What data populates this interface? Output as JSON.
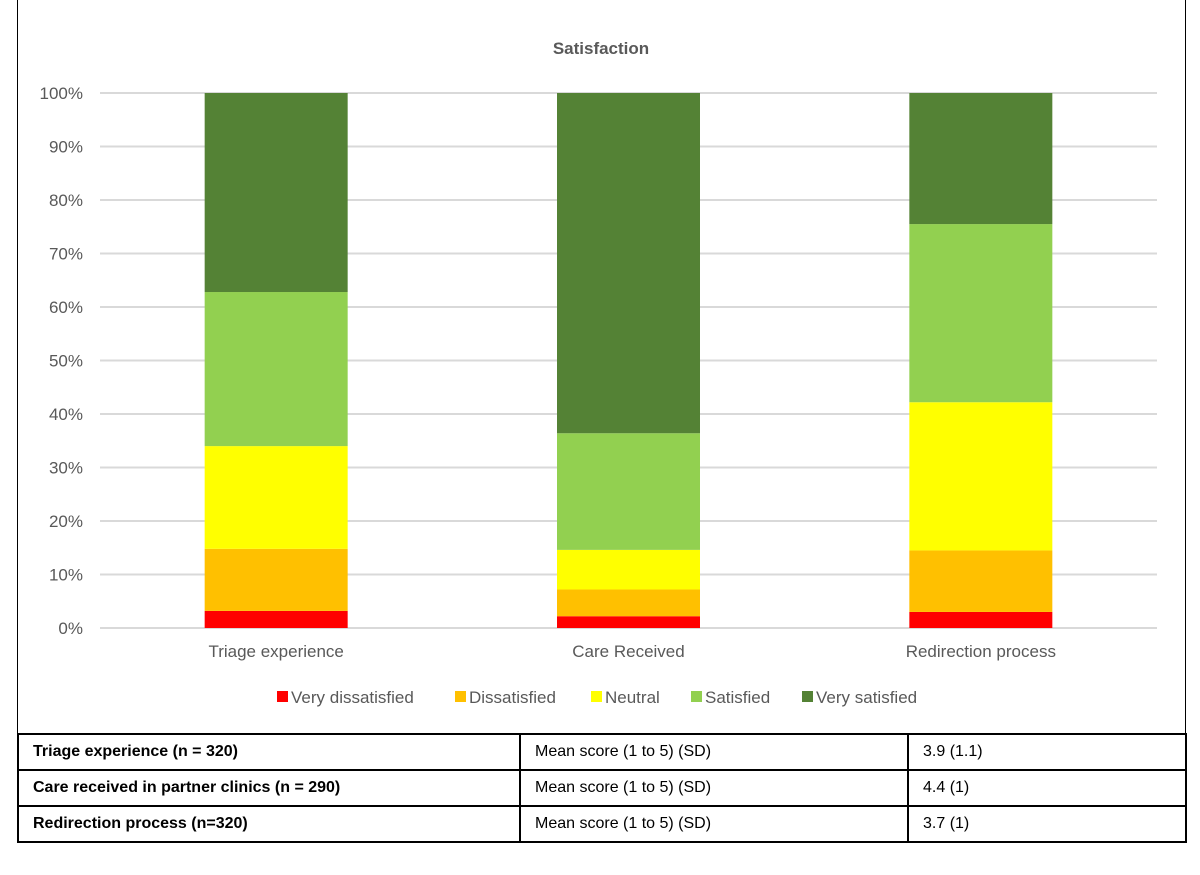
{
  "chart_data": {
    "type": "bar",
    "stacked": true,
    "percent": true,
    "title": "Satisfaction",
    "categories": [
      "Triage experience",
      "Care Received",
      "Redirection process"
    ],
    "series": [
      {
        "name": "Very dissatisfied",
        "color": "#FF0000",
        "values": [
          3.2,
          2.2,
          3.0
        ]
      },
      {
        "name": "Dissatisfied",
        "color": "#FFC000",
        "values": [
          11.6,
          5.0,
          11.5
        ]
      },
      {
        "name": "Neutral",
        "color": "#FFFF00",
        "values": [
          19.2,
          7.4,
          27.7
        ]
      },
      {
        "name": "Satisfied",
        "color": "#92D050",
        "values": [
          28.8,
          21.8,
          33.3
        ]
      },
      {
        "name": "Very satisfied",
        "color": "#548235",
        "values": [
          37.2,
          63.6,
          24.5
        ]
      }
    ],
    "yticks": [
      "0%",
      "10%",
      "20%",
      "30%",
      "40%",
      "50%",
      "60%",
      "70%",
      "80%",
      "90%",
      "100%"
    ],
    "ylim": [
      0,
      100
    ],
    "grid": true,
    "legend": "bottom"
  },
  "table": {
    "rows": [
      {
        "label": "Triage experience (n = 320)",
        "measure": "Mean score (1 to 5) (SD)",
        "value": "3.9 (1.1)"
      },
      {
        "label": "Care received in partner clinics (n = 290)",
        "measure": "Mean score (1 to 5) (SD)",
        "value": "4.4 (1)"
      },
      {
        "label": "Redirection process (n=320)",
        "measure": "Mean score (1 to 5) (SD)",
        "value": "3.7 (1)"
      }
    ]
  }
}
